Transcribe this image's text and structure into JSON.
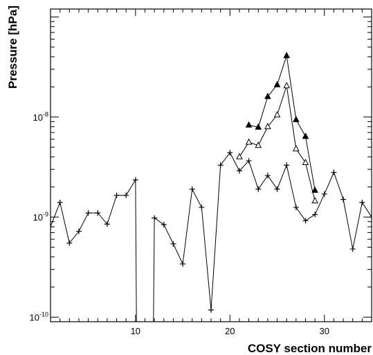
{
  "chart_data": {
    "type": "line",
    "xlabel": "COSY section number",
    "ylabel": "Pressure [hPa]",
    "xlim": [
      1,
      35
    ],
    "ylim": [
      9e-11,
      1.2e-07
    ],
    "yscale": "log",
    "grid": false,
    "x_tick_labels": [
      {
        "value": 10,
        "label": "10"
      },
      {
        "value": 20,
        "label": "20"
      },
      {
        "value": 30,
        "label": "30"
      }
    ],
    "y_tick_labels": [
      {
        "value": 1e-10,
        "base": "10",
        "exp": "-10"
      },
      {
        "value": 1e-09,
        "base": "10",
        "exp": "-9"
      },
      {
        "value": 1e-08,
        "base": "10",
        "exp": "-8"
      }
    ],
    "series": [
      {
        "marker": "plus",
        "x": [
          1,
          2,
          3,
          4,
          5,
          6,
          7,
          8,
          9,
          10,
          10.1,
          11.9,
          12,
          13,
          14,
          15,
          16,
          17,
          18,
          19,
          20,
          21,
          22,
          23,
          24,
          25,
          26,
          27,
          28,
          29,
          30,
          31,
          32,
          33,
          34,
          35
        ],
        "y": [
          8e-10,
          1.4e-09,
          5.5e-10,
          7.2e-10,
          1.1e-09,
          1.1e-09,
          8.5e-10,
          1.65e-09,
          1.65e-09,
          2.35e-09,
          9e-11,
          9e-11,
          9.8e-10,
          8.4e-10,
          5.4e-10,
          3.4e-10,
          1.9e-09,
          1.25e-09,
          1.18e-10,
          3.3e-09,
          4.4e-09,
          2.9e-09,
          3.65e-09,
          1.9e-09,
          2.6e-09,
          1.9e-09,
          3.3e-09,
          1.25e-09,
          9.2e-10,
          1.06e-09,
          1.7e-09,
          2.8e-09,
          1.5e-09,
          4.8e-10,
          1.4e-09,
          1e-09
        ],
        "marker_mask": [
          1,
          1,
          1,
          1,
          1,
          1,
          1,
          1,
          1,
          1,
          0,
          0,
          1,
          1,
          1,
          1,
          1,
          1,
          1,
          1,
          1,
          1,
          1,
          1,
          1,
          1,
          1,
          1,
          1,
          1,
          1,
          1,
          1,
          1,
          1,
          1
        ]
      },
      {
        "marker": "open-triangle",
        "x": [
          21,
          22,
          23,
          24,
          25,
          26,
          27,
          28,
          29
        ],
        "y": [
          4e-09,
          5.6e-09,
          5.2e-09,
          8e-09,
          1.05e-08,
          2.05e-08,
          4.8e-09,
          3.5e-09,
          1.45e-09
        ]
      },
      {
        "marker": "filled-triangle",
        "x": [
          22,
          23,
          24,
          25,
          26,
          27,
          28,
          29
        ],
        "y": [
          8.3e-09,
          7.9e-09,
          1.6e-08,
          2.1e-08,
          4.1e-08,
          9.4e-09,
          6.4e-09,
          1.85e-09
        ]
      }
    ]
  }
}
